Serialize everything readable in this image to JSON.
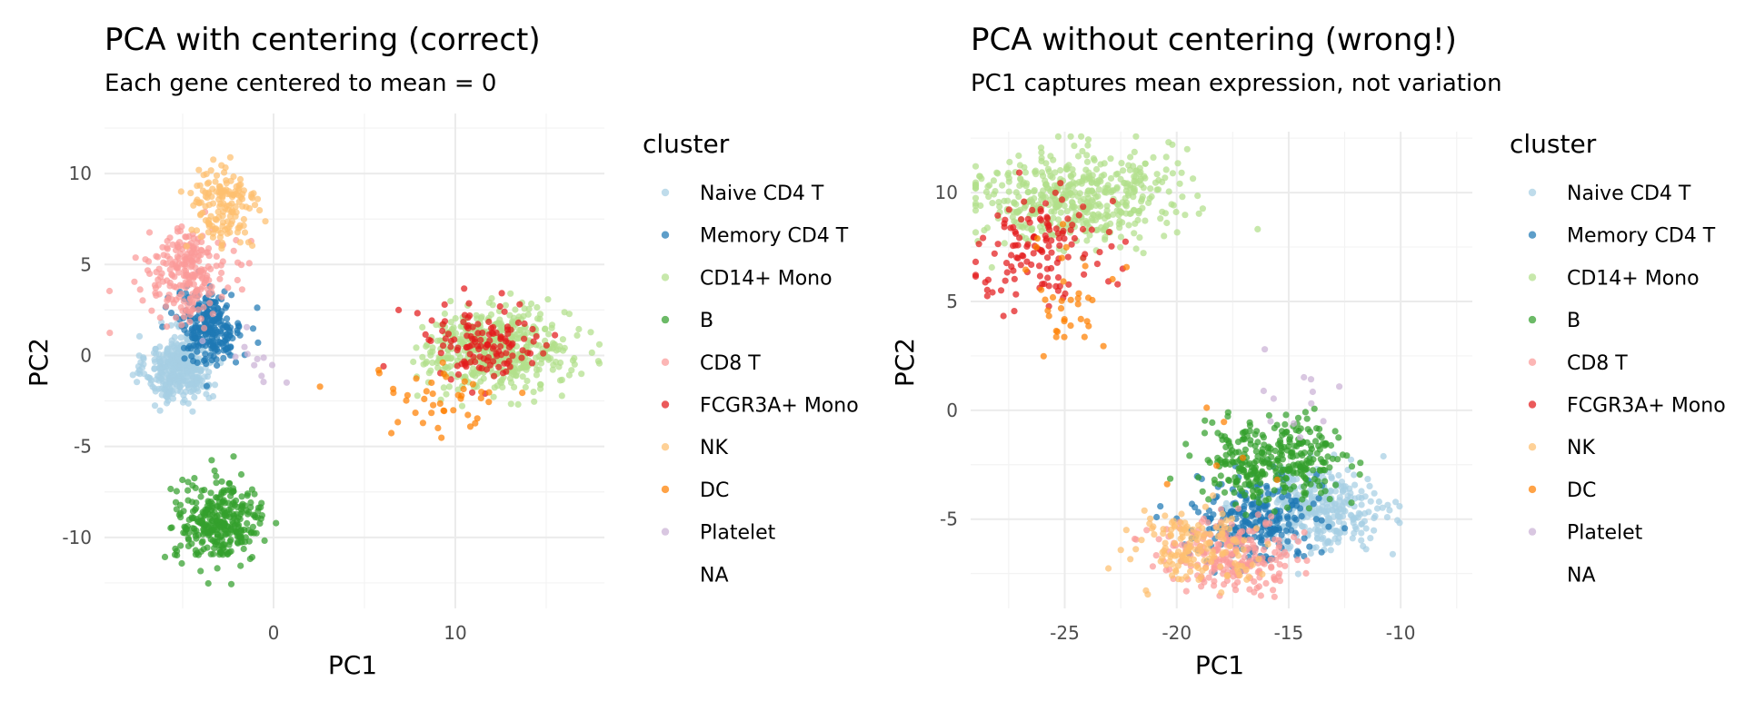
{
  "chart_data": [
    {
      "type": "scatter",
      "title": "PCA with centering (correct)",
      "subtitle": "Each gene centered to mean = 0",
      "xlabel": "PC1",
      "ylabel": "PC2",
      "xlim": [
        -9.3,
        18.2
      ],
      "ylim": [
        -13.9,
        13.3
      ],
      "xticks": [
        0,
        10
      ],
      "xminor": [
        -5,
        5,
        15
      ],
      "yticks": [
        -10,
        -5,
        0,
        5,
        10
      ],
      "yminor": [
        -12.5,
        -7.5,
        -2.5,
        2.5,
        7.5,
        12.5
      ],
      "grid": true,
      "legend_title": "cluster",
      "legend_position": "right",
      "series": [
        {
          "name": "Naive CD4 T",
          "color": "#A6CEE3",
          "clusters": [
            {
              "cx": -5.2,
              "cy": -0.7,
              "sx": 0.9,
              "sy": 0.9,
              "n": 380
            }
          ]
        },
        {
          "name": "Memory CD4 T",
          "color": "#1F78B4",
          "clusters": [
            {
              "cx": -3.5,
              "cy": 1.6,
              "sx": 0.9,
              "sy": 1.0,
              "n": 240
            }
          ]
        },
        {
          "name": "CD14+ Mono",
          "color": "#B2DF8A",
          "clusters": [
            {
              "cx": 12.3,
              "cy": 0.3,
              "sx": 2.0,
              "sy": 1.1,
              "n": 480
            }
          ]
        },
        {
          "name": "B",
          "color": "#33A02C",
          "clusters": [
            {
              "cx": -3.0,
              "cy": -9.2,
              "sx": 1.2,
              "sy": 1.1,
              "n": 320
            }
          ]
        },
        {
          "name": "CD8 T",
          "color": "#FB9A99",
          "clusters": [
            {
              "cx": -4.7,
              "cy": 4.6,
              "sx": 1.1,
              "sy": 1.2,
              "n": 230
            }
          ]
        },
        {
          "name": "FCGR3A+ Mono",
          "color": "#E31A1C",
          "clusters": [
            {
              "cx": 11.5,
              "cy": 0.6,
              "sx": 1.7,
              "sy": 1.2,
              "n": 130
            }
          ]
        },
        {
          "name": "NK",
          "color": "#FDBF6F",
          "clusters": [
            {
              "cx": -2.8,
              "cy": 8.1,
              "sx": 1.0,
              "sy": 1.3,
              "n": 150
            }
          ]
        },
        {
          "name": "DC",
          "color": "#FF7F00",
          "clusters": [
            {
              "cx": 9.5,
              "cy": -2.5,
              "sx": 1.6,
              "sy": 1.0,
              "n": 36
            },
            {
              "cx": 4.0,
              "cy": -1.8,
              "sx": 1.8,
              "sy": 0.8,
              "n": 6
            }
          ]
        },
        {
          "name": "Platelet",
          "color": "#CAB2D6",
          "clusters": [
            {
              "cx": -1.2,
              "cy": -0.4,
              "sx": 1.0,
              "sy": 0.9,
              "n": 12
            }
          ]
        },
        {
          "name": "NA",
          "color": "",
          "clusters": []
        }
      ]
    },
    {
      "type": "scatter",
      "title": "PCA without centering (wrong!)",
      "subtitle": "PC1 captures mean expression, not variation",
      "xlabel": "PC1",
      "ylabel": "PC2",
      "xlim": [
        -29.2,
        -6.8
      ],
      "ylim": [
        -9.1,
        12.8
      ],
      "xticks": [
        -25,
        -20,
        -15,
        -10
      ],
      "xminor": [
        -27.5,
        -22.5,
        -17.5,
        -12.5,
        -7.5
      ],
      "yticks": [
        -5,
        0,
        5,
        10
      ],
      "yminor": [
        -7.5,
        -2.5,
        2.5,
        7.5,
        12.5
      ],
      "grid": true,
      "legend_title": "cluster",
      "legend_position": "right",
      "series": [
        {
          "name": "Naive CD4 T",
          "color": "#A6CEE3",
          "clusters": [
            {
              "cx": -13.8,
              "cy": -4.6,
              "sx": 1.6,
              "sy": 0.9,
              "n": 380
            }
          ]
        },
        {
          "name": "Memory CD4 T",
          "color": "#1F78B4",
          "clusters": [
            {
              "cx": -16.6,
              "cy": -5.0,
              "sx": 1.3,
              "sy": 1.0,
              "n": 240
            }
          ]
        },
        {
          "name": "CD14+ Mono",
          "color": "#B2DF8A",
          "clusters": [
            {
              "cx": -24.6,
              "cy": 9.8,
              "sx": 2.2,
              "sy": 1.1,
              "n": 480
            }
          ]
        },
        {
          "name": "B",
          "color": "#33A02C",
          "clusters": [
            {
              "cx": -15.6,
              "cy": -2.3,
              "sx": 1.6,
              "sy": 0.9,
              "n": 320
            }
          ]
        },
        {
          "name": "CD8 T",
          "color": "#FB9A99",
          "clusters": [
            {
              "cx": -17.6,
              "cy": -6.6,
              "sx": 1.5,
              "sy": 0.8,
              "n": 230
            }
          ]
        },
        {
          "name": "FCGR3A+ Mono",
          "color": "#E31A1C",
          "clusters": [
            {
              "cx": -26.0,
              "cy": 7.6,
              "sx": 1.4,
              "sy": 1.2,
              "n": 130
            }
          ]
        },
        {
          "name": "NK",
          "color": "#FDBF6F",
          "clusters": [
            {
              "cx": -19.0,
              "cy": -6.3,
              "sx": 1.5,
              "sy": 0.8,
              "n": 150
            }
          ]
        },
        {
          "name": "DC",
          "color": "#FF7F00",
          "clusters": [
            {
              "cx": -24.8,
              "cy": 5.2,
              "sx": 1.1,
              "sy": 1.3,
              "n": 36
            },
            {
              "cx": -19.0,
              "cy": -3.2,
              "sx": 1.8,
              "sy": 1.4,
              "n": 6
            }
          ]
        },
        {
          "name": "Platelet",
          "color": "#CAB2D6",
          "clusters": [
            {
              "cx": -14.8,
              "cy": 0.6,
              "sx": 1.0,
              "sy": 0.8,
              "n": 12
            }
          ]
        },
        {
          "name": "NA",
          "color": "",
          "clusters": []
        }
      ]
    }
  ]
}
